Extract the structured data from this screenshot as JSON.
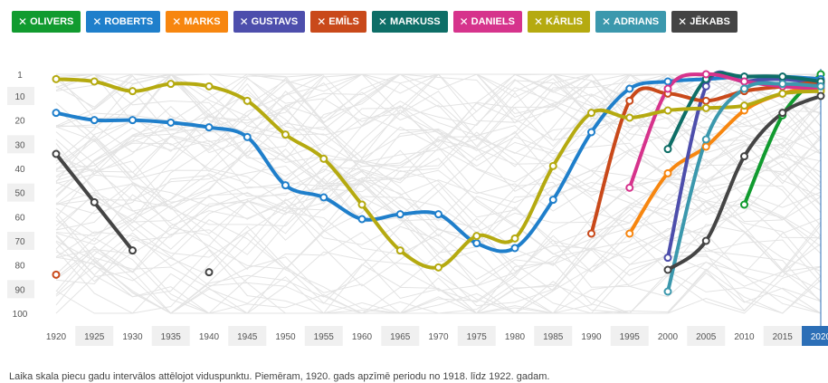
{
  "filters": [
    {
      "label": "OLIVERS",
      "color": "#119b2f"
    },
    {
      "label": "ROBERTS",
      "color": "#1f7fcb"
    },
    {
      "label": "MARKS",
      "color": "#f7860f"
    },
    {
      "label": "GUSTAVS",
      "color": "#4d4eac"
    },
    {
      "label": "EMĪLS",
      "color": "#c9491a"
    },
    {
      "label": "MARKUSS",
      "color": "#0e6e67"
    },
    {
      "label": "DANIELS",
      "color": "#d6338c"
    },
    {
      "label": "KĀRLIS",
      "color": "#b5aa10"
    },
    {
      "label": "ADRIANS",
      "color": "#3b98ad"
    },
    {
      "label": "JĒKABS",
      "color": "#444444"
    }
  ],
  "caption": "Laika skala piecu gadu intervālos attēlojot viduspunktu. Piemēram, 1920. gads apzīmē periodu no 1918. līdz 1922. gadam.",
  "chart_data": {
    "type": "line",
    "x": [
      1920,
      1925,
      1930,
      1935,
      1940,
      1945,
      1950,
      1955,
      1960,
      1965,
      1970,
      1975,
      1980,
      1985,
      1990,
      1995,
      2000,
      2005,
      2010,
      2015,
      2020
    ],
    "x_tick_labels": [
      "1920",
      "1925",
      "1930",
      "1935",
      "1940",
      "1945",
      "1950",
      "1955",
      "1960",
      "1965",
      "1970",
      "1975",
      "1980",
      "1985",
      "1990",
      "1995",
      "2000",
      "2005",
      "2010",
      "2015",
      "2020"
    ],
    "highlight_x": 2020,
    "y_ticks": [
      1,
      10,
      20,
      30,
      40,
      50,
      60,
      70,
      80,
      90,
      100
    ],
    "y_tick_labels": [
      "1",
      "10",
      "20",
      "30",
      "40",
      "50",
      "60",
      "70",
      "80",
      "90",
      "100"
    ],
    "ylim": [
      1,
      100
    ],
    "y_inverted": true,
    "series": [
      {
        "name": "OLIVERS",
        "color": "#119b2f",
        "values": [
          null,
          null,
          null,
          null,
          null,
          null,
          null,
          null,
          null,
          null,
          null,
          null,
          null,
          null,
          null,
          null,
          null,
          null,
          55,
          18,
          1
        ]
      },
      {
        "name": "ROBERTS",
        "color": "#1f7fcb",
        "values": [
          17,
          20,
          20,
          21,
          23,
          27,
          47,
          52,
          61,
          59,
          59,
          71,
          73,
          53,
          25,
          7,
          4,
          3,
          2,
          2,
          3
        ]
      },
      {
        "name": "MARKS",
        "color": "#f7860f",
        "values": [
          null,
          null,
          null,
          null,
          null,
          null,
          null,
          null,
          null,
          null,
          null,
          null,
          null,
          null,
          null,
          67,
          42,
          31,
          16,
          9,
          6
        ]
      },
      {
        "name": "GUSTAVS",
        "color": "#4d4eac",
        "values": [
          null,
          null,
          null,
          null,
          null,
          null,
          null,
          null,
          null,
          null,
          null,
          null,
          null,
          null,
          null,
          null,
          77,
          6,
          4,
          3,
          5
        ]
      },
      {
        "name": "EMĪLS",
        "color": "#c9491a",
        "values": [
          84,
          null,
          null,
          null,
          null,
          null,
          null,
          null,
          null,
          null,
          null,
          null,
          null,
          null,
          67,
          12,
          9,
          12,
          8,
          6,
          4
        ]
      },
      {
        "name": "MARKUSS",
        "color": "#0e6e67",
        "values": [
          null,
          null,
          null,
          null,
          null,
          null,
          null,
          null,
          null,
          null,
          null,
          null,
          null,
          null,
          null,
          null,
          32,
          3,
          2,
          2,
          4
        ]
      },
      {
        "name": "DANIELS",
        "color": "#d6338c",
        "values": [
          null,
          null,
          null,
          null,
          null,
          null,
          null,
          null,
          null,
          null,
          null,
          null,
          null,
          null,
          null,
          48,
          7,
          1,
          4,
          6,
          7
        ]
      },
      {
        "name": "KĀRLIS",
        "color": "#b5aa10",
        "values": [
          3,
          4,
          8,
          5,
          6,
          12,
          26,
          36,
          55,
          74,
          81,
          68,
          69,
          39,
          17,
          19,
          16,
          15,
          14,
          9,
          8
        ]
      },
      {
        "name": "ADRIANS",
        "color": "#3b98ad",
        "values": [
          null,
          null,
          null,
          null,
          null,
          null,
          null,
          null,
          null,
          null,
          null,
          null,
          null,
          null,
          null,
          null,
          91,
          28,
          7,
          5,
          6
        ]
      },
      {
        "name": "JĒKABS",
        "color": "#444444",
        "values": [
          34,
          54,
          74,
          null,
          83,
          null,
          null,
          null,
          null,
          null,
          null,
          null,
          null,
          null,
          null,
          null,
          82,
          70,
          35,
          17,
          10
        ]
      }
    ]
  }
}
